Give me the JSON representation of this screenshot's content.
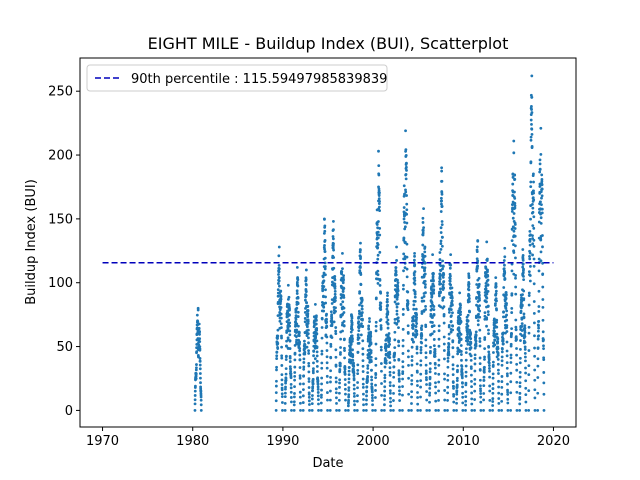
{
  "chart_data": {
    "type": "scatter",
    "title": "EIGHT MILE - Buildup Index (BUI), Scatterplot",
    "xlabel": "Date",
    "ylabel": "Buildup Index (BUI)",
    "xlim": [
      1967.5,
      2022.5
    ],
    "ylim": [
      -13,
      276
    ],
    "x_ticks": [
      1970,
      1980,
      1990,
      2000,
      2010,
      2020
    ],
    "y_ticks": [
      0,
      50,
      100,
      150,
      200,
      250
    ],
    "point_color": "#1f77b4",
    "legend": {
      "placement": "top-left"
    },
    "percentile_line": {
      "label": "90th percentile : 115.59497985839839",
      "value": 115.59497985839839,
      "x_range": [
        1970,
        2020
      ],
      "color": "#0000bb",
      "style": "dashed"
    },
    "series": [
      {
        "seasons": [
          {
            "x": 1980.6,
            "max": 80
          },
          {
            "x": 1989.6,
            "max": 128
          },
          {
            "x": 1990.6,
            "max": 98
          },
          {
            "x": 1991.6,
            "max": 112
          },
          {
            "x": 1992.6,
            "max": 110
          },
          {
            "x": 1993.6,
            "max": 83
          },
          {
            "x": 1994.6,
            "max": 150
          },
          {
            "x": 1995.6,
            "max": 148
          },
          {
            "x": 1996.6,
            "max": 123
          },
          {
            "x": 1997.6,
            "max": 75
          },
          {
            "x": 1998.6,
            "max": 131
          },
          {
            "x": 1999.6,
            "max": 72
          },
          {
            "x": 2000.6,
            "max": 203
          },
          {
            "x": 2001.6,
            "max": 92
          },
          {
            "x": 2002.6,
            "max": 128
          },
          {
            "x": 2003.6,
            "max": 219
          },
          {
            "x": 2004.6,
            "max": 123
          },
          {
            "x": 2005.6,
            "max": 158
          },
          {
            "x": 2006.6,
            "max": 122
          },
          {
            "x": 2007.6,
            "max": 190
          },
          {
            "x": 2008.6,
            "max": 122
          },
          {
            "x": 2009.6,
            "max": 92
          },
          {
            "x": 2010.6,
            "max": 107
          },
          {
            "x": 2011.6,
            "max": 133
          },
          {
            "x": 2012.6,
            "max": 132
          },
          {
            "x": 2013.6,
            "max": 104
          },
          {
            "x": 2014.6,
            "max": 127
          },
          {
            "x": 2015.6,
            "max": 211
          },
          {
            "x": 2016.6,
            "max": 126
          },
          {
            "x": 2017.6,
            "max": 262
          },
          {
            "x": 2018.6,
            "max": 221
          }
        ]
      }
    ]
  }
}
